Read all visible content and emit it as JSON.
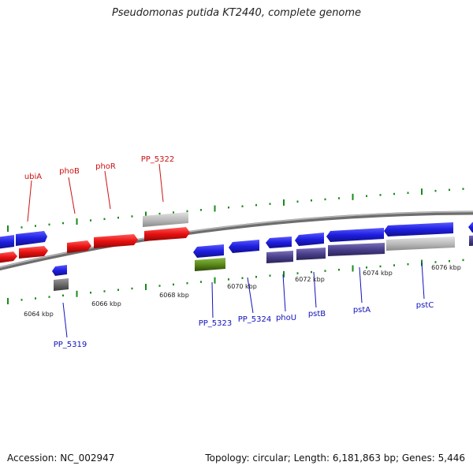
{
  "title": "Pseudomonas putida KT2440, complete genome",
  "footer": {
    "accession": "Accession: NC_002947",
    "summary": "Topology: circular; Length: 6,181,863 bp; Genes: 5,446"
  },
  "colors": {
    "forward_gene": "#1f1fe6",
    "reverse_gene": "#ee1111",
    "forward_label": "#1111bb",
    "reverse_label": "#cc1111",
    "pseudo_gene": "#bdbdbd",
    "rna_gene": "#5a8a1a",
    "other_feature": "#4a3f8c",
    "dark_feature": "#6a6a6a",
    "tick": "#1a8a1a",
    "backbone": "#8a8a8a"
  },
  "scale": {
    "labels": [
      "6064 kbp",
      "6066 kbp",
      "6068 kbp",
      "6070 kbp",
      "6072 kbp",
      "6074 kbp",
      "6076 kbp"
    ]
  },
  "genes_top": [
    "ubiA",
    "phoB",
    "phoR",
    "PP_5322"
  ],
  "genes_bottom": [
    "PP_5319",
    "PP_5323",
    "PP_5324",
    "phoU",
    "pstB",
    "pstA",
    "pstC"
  ]
}
